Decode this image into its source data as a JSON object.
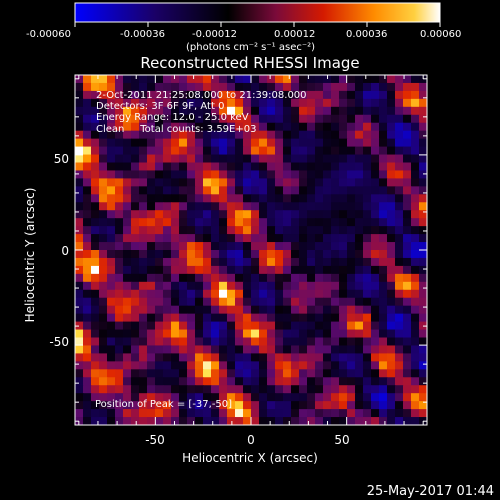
{
  "chart_data": {
    "type": "heatmap",
    "title": "Reconstructed RHESSI Image",
    "xlabel": "Heliocentric X (arcsec)",
    "ylabel": "Heliocentric Y (arcsec)",
    "xlim": [
      -92,
      92
    ],
    "ylim": [
      -92,
      92
    ],
    "xticks": [
      "-50",
      "0",
      "50"
    ],
    "yticks": [
      "50",
      "0",
      "-50"
    ],
    "colorbar": {
      "ticks": [
        "-0.00060",
        "-0.00036",
        "-0.00012",
        "0.00012",
        "0.00036",
        "0.00060"
      ],
      "unit_label": "(photons cm⁻² s⁻¹ asec⁻²)",
      "range": [
        -0.0006,
        0.0006
      ]
    },
    "annotations": [
      "2-Oct-2011 21:25:08.000 to 21:39:08.000",
      "Detectors: 3F 6F 9F, Att 0",
      "Energy Range: 12.0 - 25.0 keV",
      "Clean     Total counts: 3.59E+03"
    ],
    "peak_label": "Position of Peak = [-37,-50]",
    "peak_position": [
      -37,
      -50
    ],
    "grid": false
  },
  "footer": {
    "timestamp": "25-May-2017 01:44"
  }
}
